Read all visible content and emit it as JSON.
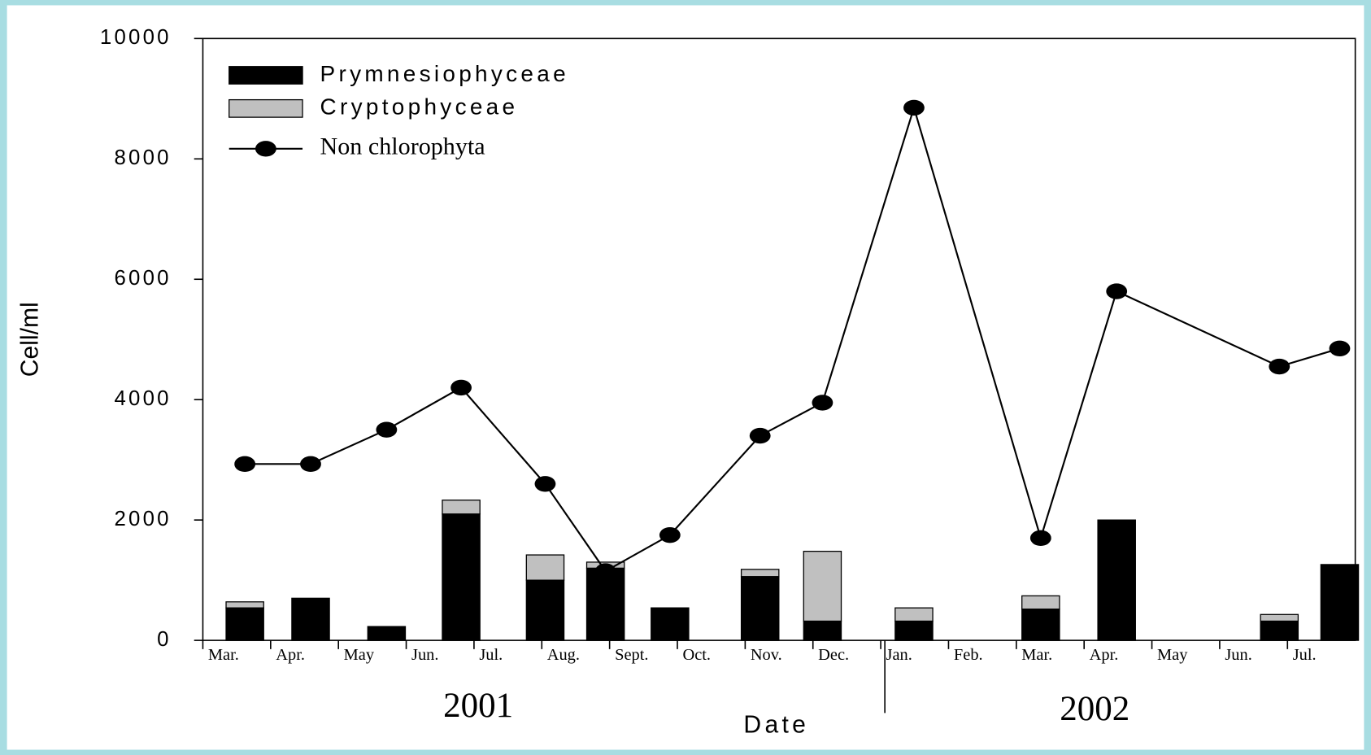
{
  "chart_data": {
    "type": "bar",
    "y_label": "Cell/ml",
    "x_label": "Date",
    "annotations": [
      "2001",
      "2002"
    ],
    "x": [
      0.62,
      1.59,
      2.71,
      3.81,
      5.05,
      5.94,
      6.89,
      8.22,
      9.14,
      10.49,
      12.36,
      13.48,
      15.88,
      16.77
    ],
    "series": [
      {
        "name": "Prymnesiophyceae",
        "color": "#000000",
        "type": "bar",
        "values": [
          540,
          700,
          230,
          2100,
          1000,
          1200,
          540,
          1060,
          320,
          320,
          520,
          2000,
          320,
          1260
        ]
      },
      {
        "name": "Cryptophyceae",
        "color": "#c0c0c0",
        "type": "bar",
        "values": [
          100,
          0,
          0,
          230,
          420,
          100,
          0,
          120,
          1160,
          220,
          220,
          0,
          110,
          0
        ]
      },
      {
        "name": "Non chlorophyta",
        "color": "#000000",
        "type": "line",
        "values": [
          2930,
          2930,
          3500,
          4200,
          2600,
          1150,
          1750,
          3400,
          3950,
          8850,
          1700,
          5800,
          4550,
          4850
        ]
      }
    ],
    "xlim": [
      0,
      17
    ],
    "xticks": [
      {
        "value": 0,
        "label": "Mar."
      },
      {
        "value": 1,
        "label": "Apr."
      },
      {
        "value": 2,
        "label": "May"
      },
      {
        "value": 3,
        "label": "Jun."
      },
      {
        "value": 4,
        "label": "Jul."
      },
      {
        "value": 5,
        "label": "Aug."
      },
      {
        "value": 6,
        "label": "Sept."
      },
      {
        "value": 7,
        "label": "Oct."
      },
      {
        "value": 8,
        "label": "Nov."
      },
      {
        "value": 9,
        "label": "Dec."
      },
      {
        "value": 10,
        "label": "Jan."
      },
      {
        "value": 11,
        "label": "Feb."
      },
      {
        "value": 12,
        "label": "Mar."
      },
      {
        "value": 13,
        "label": "Apr."
      },
      {
        "value": 14,
        "label": "May"
      },
      {
        "value": 15,
        "label": "Jun."
      },
      {
        "value": 16,
        "label": "Jul."
      }
    ],
    "ylim": [
      0,
      10000
    ],
    "yticks": [
      0,
      2000,
      4000,
      6000,
      8000,
      10000
    ],
    "legend": "upper left",
    "grid": false
  }
}
